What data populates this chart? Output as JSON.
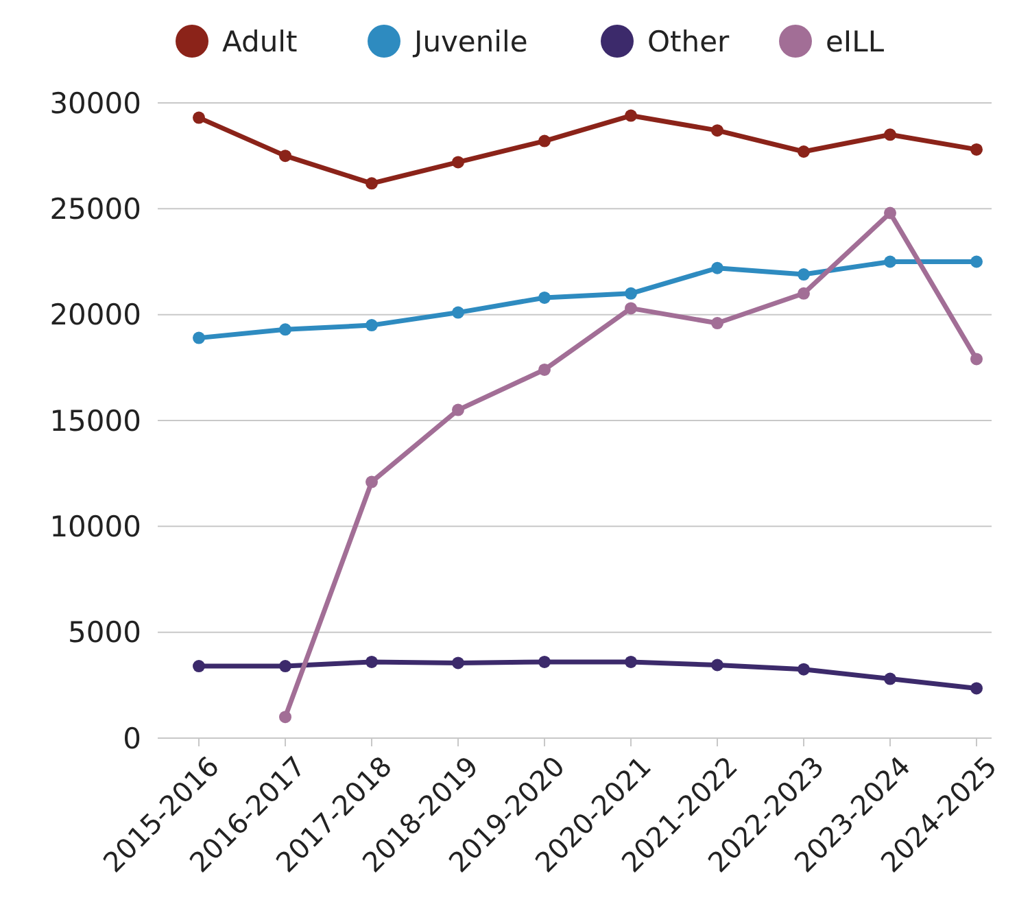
{
  "chart_data": {
    "type": "line",
    "categories": [
      "2015-2016",
      "2016-2017",
      "2017-2018",
      "2018-2019",
      "2019-2020",
      "2020-2021",
      "2021-2022",
      "2022-2023",
      "2023-2024",
      "2024-2025"
    ],
    "series": [
      {
        "name": "Adult",
        "color": "#8b2319",
        "values": [
          29300,
          27500,
          26200,
          27200,
          28200,
          29400,
          28700,
          27700,
          28500,
          27800
        ]
      },
      {
        "name": "Juvenile",
        "color": "#2e8bc0",
        "values": [
          18900,
          19300,
          19500,
          20100,
          20800,
          21000,
          22200,
          21900,
          22500,
          22500
        ]
      },
      {
        "name": "Other",
        "color": "#3c2a6b",
        "values": [
          3400,
          3400,
          3600,
          3550,
          3600,
          3600,
          3450,
          3250,
          2800,
          2350
        ]
      },
      {
        "name": "eILL",
        "color": "#a26e96",
        "values": [
          null,
          1000,
          12100,
          15500,
          17400,
          20300,
          19600,
          21000,
          24800,
          17900
        ]
      }
    ],
    "ylim": [
      0,
      30000
    ],
    "yticks": [
      0,
      5000,
      10000,
      15000,
      20000,
      25000,
      30000
    ],
    "grid": "y",
    "legend": "top",
    "marker": "circle",
    "line_style": "solid"
  }
}
